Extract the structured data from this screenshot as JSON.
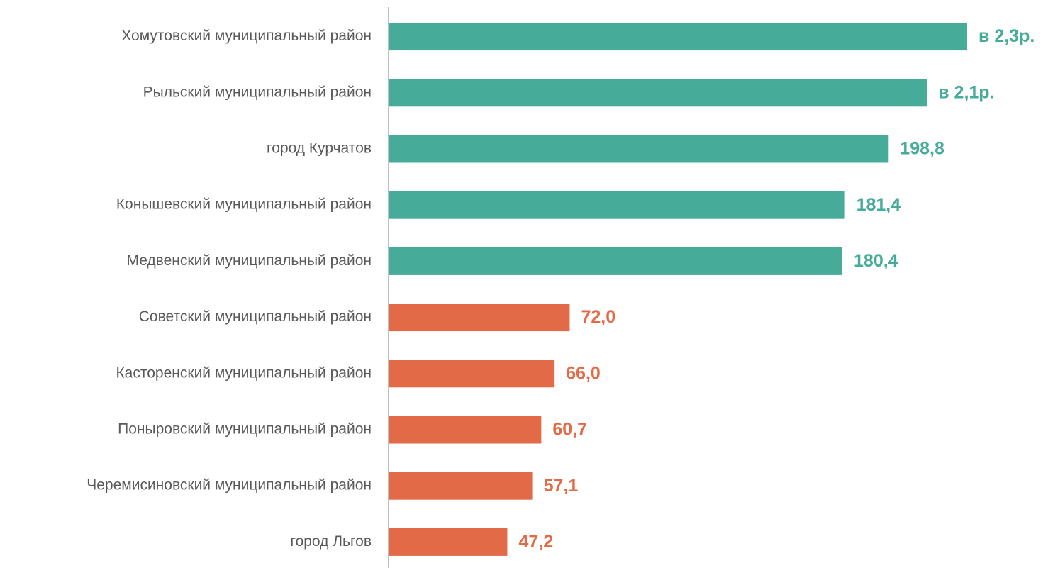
{
  "chart_data": {
    "type": "bar",
    "orientation": "horizontal",
    "categories": [
      "Хомутовский муниципальный район",
      "Рыльский муниципальный район",
      "город Курчатов",
      "Конышевский муниципальный район",
      "Медвенский муниципальный район",
      "Советский муниципальный район",
      "Касторенский муниципальный район",
      "Поныровский муниципальный район",
      "Черемисиновский муниципальный район",
      "город Льгов"
    ],
    "values": [
      230,
      214,
      198.8,
      181.4,
      180.4,
      72.0,
      66.0,
      60.7,
      57.1,
      47.2
    ],
    "value_labels": [
      "в 2,3р.",
      "в 2,1р.",
      "198,8",
      "181,4",
      "180,4",
      "72,0",
      "66,0",
      "60,7",
      "57,1",
      "47,2"
    ],
    "colors": [
      "#46ab98",
      "#46ab98",
      "#46ab98",
      "#46ab98",
      "#46ab98",
      "#e36a46",
      "#e36a46",
      "#e36a46",
      "#e36a46",
      "#e36a46"
    ]
  }
}
